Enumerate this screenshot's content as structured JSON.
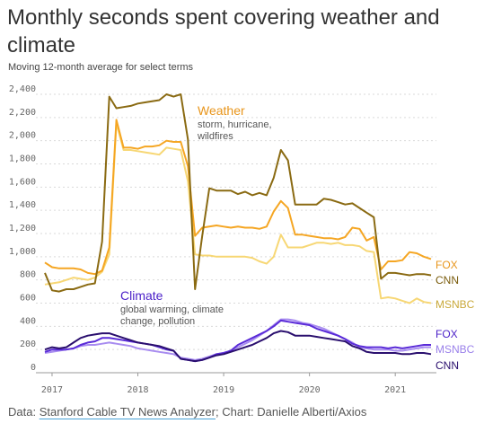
{
  "title": "Monthly seconds spent covering weather and climate",
  "subtitle": "Moving 12-month average for select terms",
  "footer": {
    "prefix": "Data: ",
    "source_link": "Stanford Cable TV News Analyzer",
    "suffix": "; Chart: Danielle Alberti/Axios"
  },
  "colors": {
    "weather_fox": "#f5a623",
    "weather_cnn": "#8a6a12",
    "weather_msnbc": "#f7d774",
    "climate_fox": "#5a2bd8",
    "climate_cnn": "#2a0f6e",
    "climate_msnbc": "#a88cf0"
  },
  "chart_data": {
    "type": "line",
    "x_ticks": [
      {
        "label": "2017",
        "value": "2017-01"
      },
      {
        "label": "2018",
        "value": "2018-01"
      },
      {
        "label": "2019",
        "value": "2019-01"
      },
      {
        "label": "2020",
        "value": "2020-01"
      },
      {
        "label": "2021",
        "value": "2021-01"
      }
    ],
    "ylim": [
      0,
      2400
    ],
    "y_ticks": [
      "0",
      "200",
      "400",
      "600",
      "800",
      "1,000",
      "1,200",
      "1,400",
      "1,600",
      "1,800",
      "2,000",
      "2,200",
      "2,400"
    ],
    "x": [
      "2016-12",
      "2017-01",
      "2017-02",
      "2017-03",
      "2017-04",
      "2017-05",
      "2017-06",
      "2017-07",
      "2017-08",
      "2017-09",
      "2017-10",
      "2017-11",
      "2017-12",
      "2018-01",
      "2018-02",
      "2018-03",
      "2018-04",
      "2018-05",
      "2018-06",
      "2018-07",
      "2018-08",
      "2018-09",
      "2018-10",
      "2018-11",
      "2018-12",
      "2019-01",
      "2019-02",
      "2019-03",
      "2019-04",
      "2019-05",
      "2019-06",
      "2019-07",
      "2019-08",
      "2019-09",
      "2019-10",
      "2019-11",
      "2019-12",
      "2020-01",
      "2020-02",
      "2020-03",
      "2020-04",
      "2020-05",
      "2020-06",
      "2020-07",
      "2020-08",
      "2020-09",
      "2020-10",
      "2020-11",
      "2020-12",
      "2021-01",
      "2021-02",
      "2021-03",
      "2021-04",
      "2021-05",
      "2021-06"
    ],
    "groups": [
      {
        "name": "Weather",
        "note": "storm, hurricane, wildfires",
        "series": [
          {
            "name": "CNN",
            "color": "#8a6a12",
            "values": [
              860,
              710,
              700,
              720,
              720,
              740,
              760,
              770,
              1130,
              2380,
              2280,
              2290,
              2300,
              2320,
              2330,
              2340,
              2350,
              2400,
              2380,
              2400,
              2010,
              720,
              1180,
              1590,
              1570,
              1570,
              1570,
              1540,
              1560,
              1530,
              1550,
              1530,
              1680,
              1920,
              1830,
              1450,
              1450,
              1450,
              1450,
              1500,
              1490,
              1470,
              1450,
              1460,
              1420,
              1380,
              1340,
              810,
              860,
              860,
              850,
              840,
              850,
              850,
              840
            ]
          },
          {
            "name": "FOX",
            "color": "#f5a623",
            "values": [
              950,
              910,
              900,
              900,
              900,
              890,
              860,
              850,
              880,
              1080,
              2180,
              1940,
              1940,
              1930,
              1950,
              1950,
              1960,
              2000,
              1990,
              1990,
              1780,
              1180,
              1250,
              1260,
              1270,
              1260,
              1250,
              1260,
              1250,
              1250,
              1240,
              1260,
              1390,
              1480,
              1420,
              1190,
              1190,
              1180,
              1170,
              1160,
              1160,
              1150,
              1170,
              1250,
              1240,
              1140,
              1170,
              890,
              960,
              960,
              970,
              1040,
              1030,
              1000,
              980
            ]
          },
          {
            "name": "MSNBC",
            "color": "#f7d774",
            "values": [
              760,
              770,
              780,
              800,
              820,
              810,
              800,
              820,
              870,
              1020,
              2150,
              1920,
              1920,
              1910,
              1900,
              1890,
              1880,
              1940,
              1930,
              1920,
              1650,
              1020,
              1010,
              1010,
              1000,
              1000,
              1000,
              1000,
              1000,
              990,
              960,
              940,
              1000,
              1190,
              1080,
              1080,
              1080,
              1100,
              1120,
              1120,
              1110,
              1120,
              1100,
              1100,
              1090,
              1050,
              1040,
              640,
              650,
              640,
              620,
              600,
              640,
              610,
              600
            ]
          }
        ]
      },
      {
        "name": "Climate",
        "note": "global warming, climate change, pollution",
        "series": [
          {
            "name": "FOX",
            "color": "#5a2bd8",
            "values": [
              180,
              200,
              200,
              200,
              210,
              240,
              260,
              270,
              300,
              300,
              290,
              280,
              270,
              260,
              250,
              240,
              220,
              200,
              190,
              120,
              110,
              100,
              110,
              130,
              160,
              170,
              190,
              240,
              270,
              300,
              330,
              360,
              400,
              450,
              440,
              430,
              420,
              410,
              380,
              360,
              340,
              320,
              290,
              250,
              230,
              220,
              220,
              220,
              210,
              220,
              210,
              220,
              230,
              240,
              240
            ]
          },
          {
            "name": "MSNBC",
            "color": "#a88cf0",
            "values": [
              170,
              180,
              190,
              200,
              210,
              230,
              240,
              240,
              250,
              260,
              250,
              240,
              230,
              210,
              200,
              190,
              180,
              170,
              160,
              130,
              120,
              110,
              120,
              140,
              160,
              170,
              190,
              220,
              250,
              280,
              320,
              360,
              410,
              460,
              460,
              450,
              430,
              420,
              400,
              380,
              350,
              320,
              290,
              260,
              220,
              210,
              200,
              200,
              200,
              190,
              190,
              200,
              210,
              220,
              220
            ]
          },
          {
            "name": "CNN",
            "color": "#2a0f6e",
            "values": [
              200,
              220,
              210,
              220,
              260,
              300,
              320,
              330,
              340,
              340,
              320,
              300,
              280,
              260,
              250,
              240,
              230,
              210,
              190,
              120,
              110,
              100,
              110,
              130,
              150,
              160,
              180,
              200,
              220,
              240,
              270,
              300,
              340,
              360,
              350,
              320,
              320,
              320,
              310,
              300,
              290,
              280,
              270,
              230,
              210,
              180,
              170,
              170,
              170,
              170,
              160,
              160,
              170,
              170,
              160
            ]
          }
        ]
      }
    ]
  }
}
